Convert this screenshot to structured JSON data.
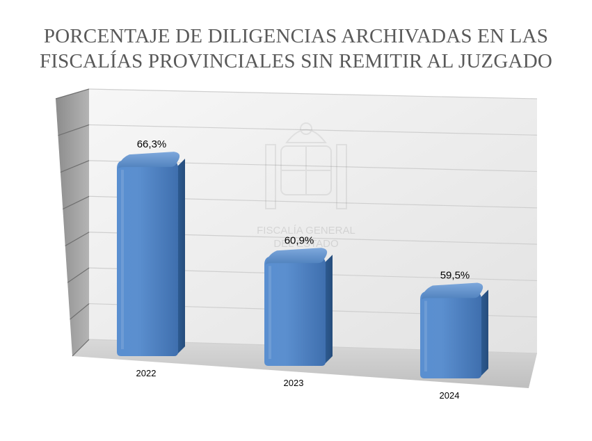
{
  "chart_data": {
    "type": "bar",
    "title_lines": [
      "PORCENTAJE DE DILIGENCIAS ARCHIVADAS EN LAS",
      "FISCALÍAS PROVINCIALES SIN REMITIR AL JUZGADO"
    ],
    "categories": [
      "2022",
      "2023",
      "2024"
    ],
    "values": [
      66.3,
      60.9,
      59.5
    ],
    "data_labels": [
      "66,3%",
      "60,9%",
      "59,5%"
    ],
    "xlabel": "",
    "ylabel": "",
    "ylim": [
      55,
      70
    ],
    "grid": true,
    "legend": "none",
    "style": "3d-cylinder-bars",
    "colors": {
      "bar": "#4f81bd",
      "bar_dark": "#2e5a8e",
      "wall": "#ebebeb",
      "grid": "#c8c8c8"
    },
    "watermark_text": [
      "FISCALÍA GENERAL",
      "DEL ESTADO"
    ]
  }
}
